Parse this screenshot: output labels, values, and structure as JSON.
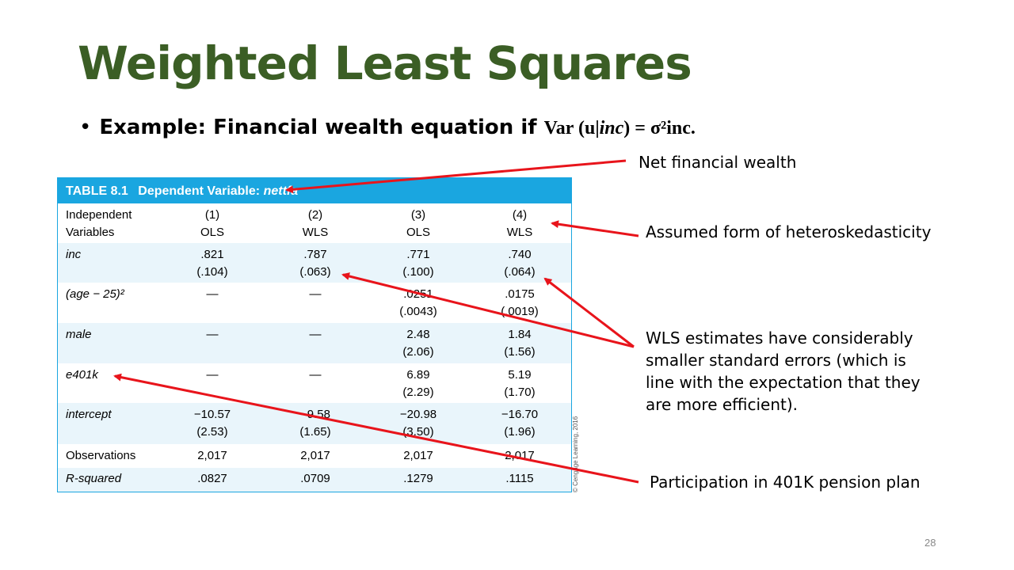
{
  "slide": {
    "title": "Weighted Least Squares",
    "bullet_text": "Example: Financial wealth equation if ",
    "math_var": "Var",
    "math_u": "(u|",
    "math_inc": "inc",
    "math_rest": ") = σ²inc.",
    "page_number": "28"
  },
  "table": {
    "caption_label": "TABLE 8.1",
    "caption_dv": "Dependent Variable:",
    "caption_var": "nettfa",
    "header": {
      "label_line1": "Independent",
      "label_line2": "Variables",
      "cols": [
        {
          "num": "(1)",
          "method": "OLS"
        },
        {
          "num": "(2)",
          "method": "WLS"
        },
        {
          "num": "(3)",
          "method": "OLS"
        },
        {
          "num": "(4)",
          "method": "WLS"
        }
      ]
    },
    "rows": [
      {
        "label": "inc",
        "vals": [
          ".821",
          ".787",
          ".771",
          ".740"
        ],
        "se": [
          "(.104)",
          "(.063)",
          "(.100)",
          "(.064)"
        ]
      },
      {
        "label": "(age − 25)²",
        "vals": [
          "—",
          "—",
          ".0251",
          ".0175"
        ],
        "se": [
          "",
          "",
          "(.0043)",
          "(.0019)"
        ]
      },
      {
        "label": "male",
        "vals": [
          "—",
          "—",
          "2.48",
          "1.84"
        ],
        "se": [
          "",
          "",
          "(2.06)",
          "(1.56)"
        ]
      },
      {
        "label": "e401k",
        "vals": [
          "—",
          "—",
          "6.89",
          "5.19"
        ],
        "se": [
          "",
          "",
          "(2.29)",
          "(1.70)"
        ]
      },
      {
        "label": "intercept",
        "vals": [
          "−10.57",
          "−9.58",
          "−20.98",
          "−16.70"
        ],
        "se": [
          "(2.53)",
          "(1.65)",
          "(3.50)",
          "(1.96)"
        ]
      }
    ],
    "observations": {
      "label": "Observations",
      "vals": [
        "2,017",
        "2,017",
        "2,017",
        "2,017"
      ]
    },
    "rsquared": {
      "label": "R-squared",
      "vals": [
        ".0827",
        ".0709",
        ".1279",
        ".1115"
      ]
    },
    "copyright": "© Cengage Learning, 2016"
  },
  "annotations": {
    "net_wealth": "Net financial wealth",
    "hetero": "Assumed form of heteroskedasticity",
    "wls": "WLS estimates have considerably smaller standard errors (which is line with the expectation that they are more efficient).",
    "pension": "Participation in 401K pension plan"
  },
  "colors": {
    "title": "#3b5e25",
    "table_header": "#1aa6e0",
    "arrow": "#e8141b"
  }
}
